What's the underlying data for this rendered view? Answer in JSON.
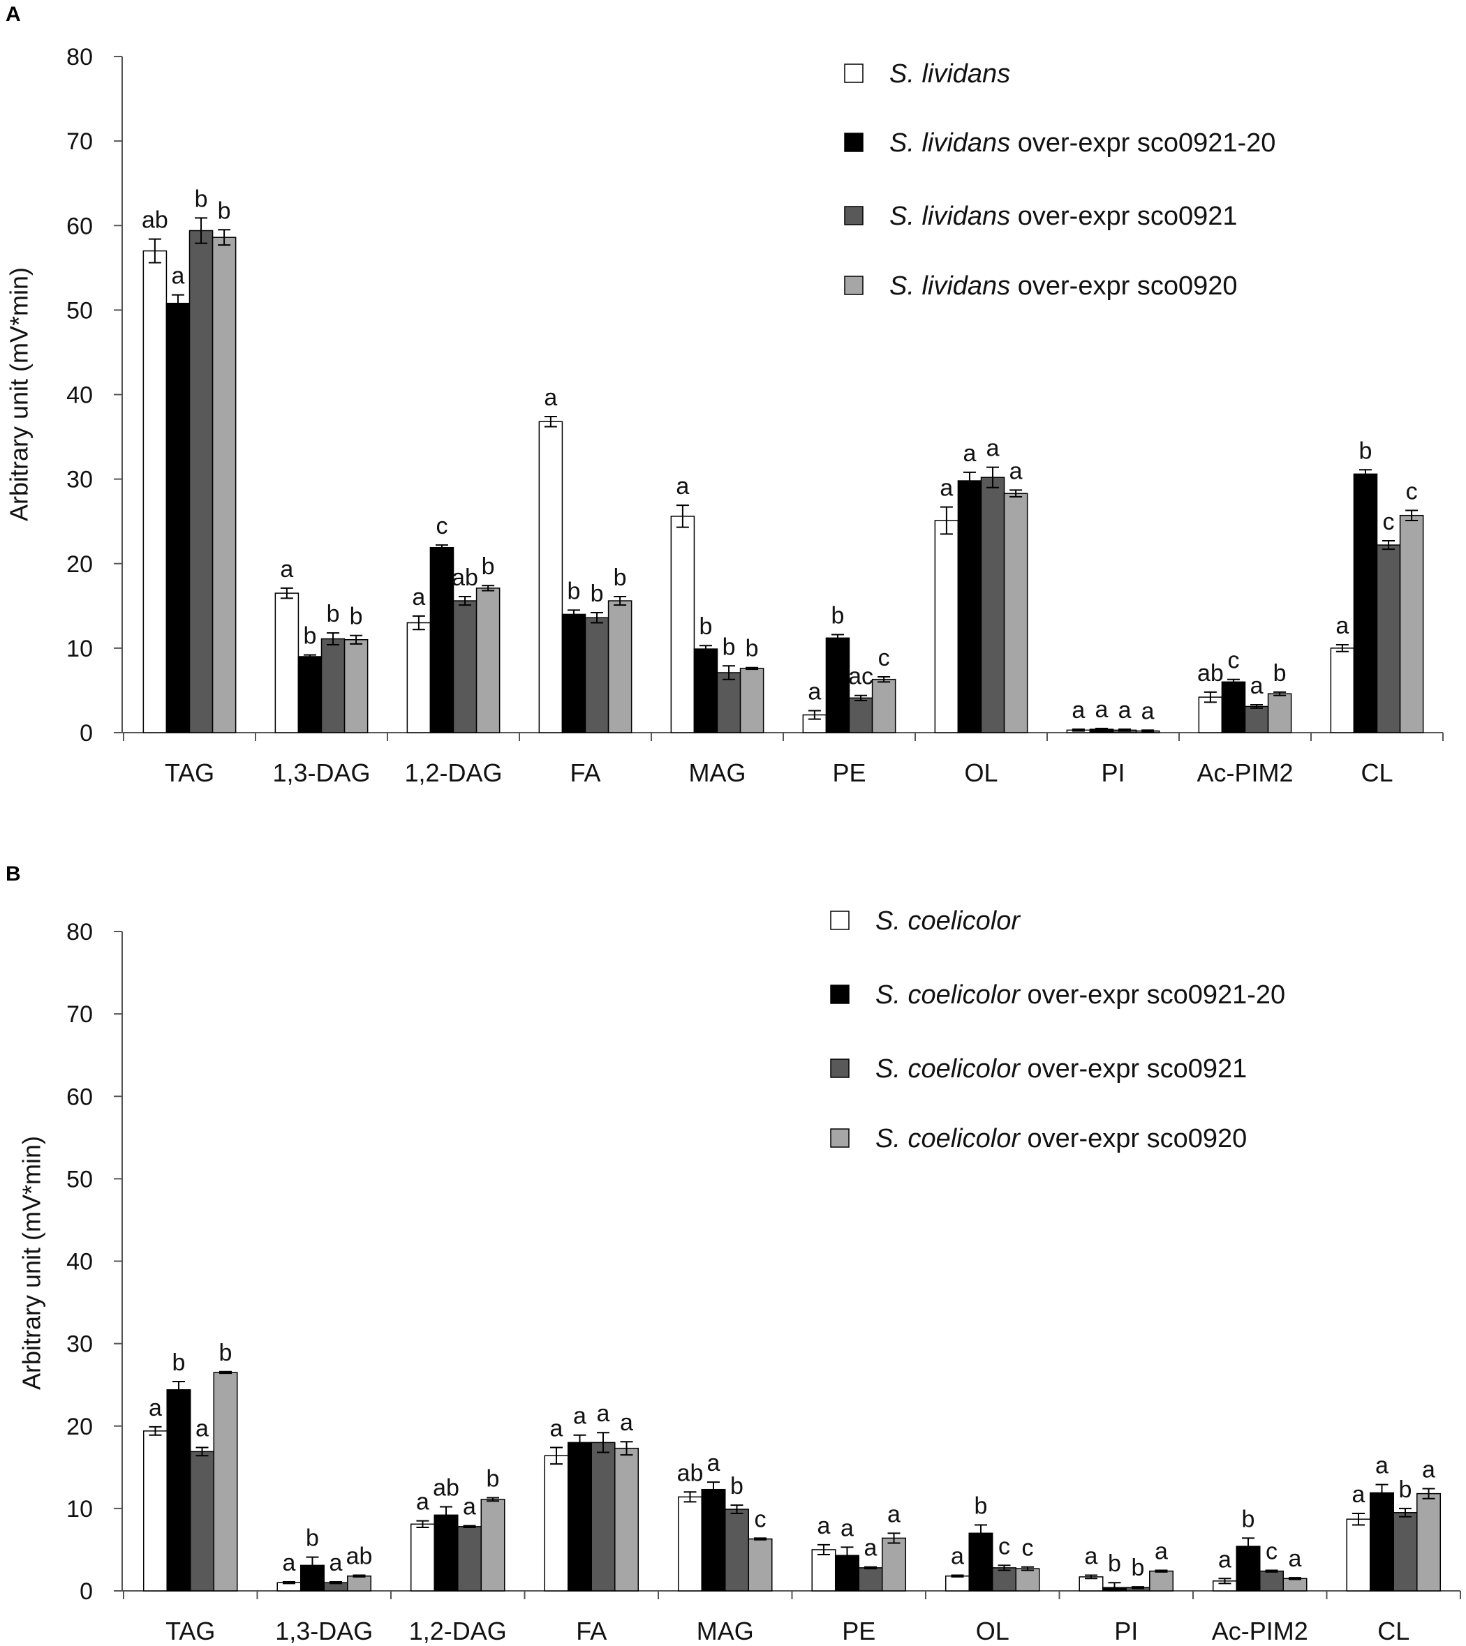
{
  "figure": {
    "panels": [
      "A",
      "B"
    ]
  },
  "chart_data": [
    {
      "type": "bar",
      "panel": "A",
      "title": "",
      "xlabel": "",
      "ylabel": "Arbitrary unit (mV*min)",
      "ylim": [
        0,
        80
      ],
      "yticks": [
        0,
        10,
        20,
        30,
        40,
        50,
        60,
        70,
        80
      ],
      "categories": [
        "TAG",
        "1,3-DAG",
        "1,2-DAG",
        "FA",
        "MAG",
        "PE",
        "OL",
        "PI",
        "Ac-PIM2",
        "CL"
      ],
      "series": [
        {
          "name_italic": "S. lividans",
          "name_rest": "",
          "color": "#ffffff",
          "values": [
            57.0,
            16.5,
            13.0,
            36.8,
            25.6,
            2.1,
            25.1,
            0.3,
            4.2,
            10.0
          ],
          "errors": [
            1.4,
            0.6,
            0.8,
            0.6,
            1.3,
            0.5,
            1.6,
            0.1,
            0.6,
            0.4
          ],
          "labels": [
            "ab",
            "a",
            "a",
            "a",
            "a",
            "a",
            "a",
            "a",
            "ab",
            "a"
          ]
        },
        {
          "name_italic": "S. lividans",
          "name_rest": " over-expr sco0921-20",
          "color": "#000000",
          "values": [
            50.8,
            9.0,
            21.9,
            14.0,
            9.9,
            11.2,
            29.8,
            0.4,
            6.0,
            30.6
          ],
          "errors": [
            1.0,
            0.2,
            0.3,
            0.5,
            0.4,
            0.4,
            1.0,
            0.1,
            0.3,
            0.5
          ],
          "labels": [
            "a",
            "b",
            "c",
            "b",
            "b",
            "b",
            "a",
            "a",
            "c",
            "b"
          ]
        },
        {
          "name_italic": "S. lividans",
          "name_rest": " over-expr sco0921",
          "color": "#595959",
          "values": [
            59.4,
            11.1,
            15.6,
            13.6,
            7.1,
            4.1,
            30.2,
            0.3,
            3.1,
            22.2
          ],
          "errors": [
            1.5,
            0.7,
            0.5,
            0.6,
            0.8,
            0.3,
            1.2,
            0.1,
            0.2,
            0.5
          ],
          "labels": [
            "b",
            "b",
            "ab",
            "b",
            "b",
            "ac",
            "a",
            "a",
            "a",
            "c"
          ]
        },
        {
          "name_italic": "S. lividans",
          "name_rest": " over-expr sco0920",
          "color": "#a6a6a6",
          "values": [
            58.6,
            11.0,
            17.1,
            15.6,
            7.6,
            6.3,
            28.3,
            0.2,
            4.6,
            25.7
          ],
          "errors": [
            0.9,
            0.5,
            0.3,
            0.5,
            0.1,
            0.3,
            0.4,
            0.1,
            0.2,
            0.6
          ],
          "labels": [
            "b",
            "b",
            "b",
            "b",
            "b",
            "c",
            "a",
            "a",
            "b",
            "c"
          ]
        }
      ]
    },
    {
      "type": "bar",
      "panel": "B",
      "title": "",
      "xlabel": "",
      "ylabel": "Arbitrary unit (mV*min)",
      "ylim": [
        0,
        80
      ],
      "yticks": [
        0,
        10,
        20,
        30,
        40,
        50,
        60,
        70,
        80
      ],
      "categories": [
        "TAG",
        "1,3-DAG",
        "1,2-DAG",
        "FA",
        "MAG",
        "PE",
        "OL",
        "PI",
        "Ac-PIM2",
        "CL"
      ],
      "series": [
        {
          "name_italic": "S. coelicolor",
          "name_rest": "",
          "color": "#ffffff",
          "values": [
            19.4,
            1.0,
            8.1,
            16.4,
            11.4,
            5.0,
            1.8,
            1.7,
            1.2,
            8.7
          ],
          "errors": [
            0.5,
            0.1,
            0.4,
            1.0,
            0.6,
            0.6,
            0.1,
            0.2,
            0.3,
            0.7
          ],
          "labels": [
            "a",
            "a",
            "a",
            "a",
            "ab",
            "a",
            "a",
            "a",
            "a",
            "a"
          ]
        },
        {
          "name_italic": "S. coelicolor",
          "name_rest": " over-expr sco0921-20",
          "color": "#000000",
          "values": [
            24.4,
            3.1,
            9.2,
            18.0,
            12.3,
            4.3,
            7.0,
            0.4,
            5.4,
            11.9
          ],
          "errors": [
            1.0,
            1.0,
            1.0,
            0.9,
            0.9,
            1.0,
            1.0,
            0.6,
            1.0,
            1.0
          ],
          "labels": [
            "b",
            "b",
            "ab",
            "a",
            "a",
            "a",
            "b",
            "b",
            "b",
            "a"
          ]
        },
        {
          "name_italic": "S. coelicolor",
          "name_rest": " over-expr sco0921",
          "color": "#595959",
          "values": [
            16.9,
            1.0,
            7.8,
            18.0,
            9.9,
            2.8,
            2.8,
            0.4,
            2.4,
            9.5
          ],
          "errors": [
            0.5,
            0.1,
            0.1,
            1.2,
            0.5,
            0.1,
            0.3,
            0.1,
            0.1,
            0.5
          ],
          "labels": [
            "a",
            "a",
            "a",
            "a",
            "b",
            "a",
            "c",
            "b",
            "c",
            "b"
          ]
        },
        {
          "name_italic": "S. coelicolor",
          "name_rest": " over-expr sco0920",
          "color": "#a6a6a6",
          "values": [
            26.5,
            1.8,
            11.1,
            17.3,
            6.3,
            6.4,
            2.7,
            2.4,
            1.5,
            11.8
          ],
          "errors": [
            0.1,
            0.1,
            0.2,
            0.8,
            0.1,
            0.6,
            0.2,
            0.1,
            0.1,
            0.6
          ],
          "labels": [
            "b",
            "ab",
            "b",
            "a",
            "c",
            "a",
            "c",
            "a",
            "a",
            "a"
          ]
        }
      ]
    }
  ]
}
